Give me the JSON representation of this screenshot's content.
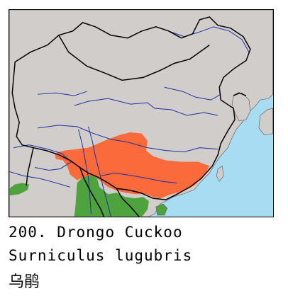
{
  "caption": {
    "number": "200.",
    "common_name": "Drongo Cuckoo",
    "scientific_name": "Surniculus lugubris",
    "chinese_name": "乌鹃"
  },
  "map": {
    "colors": {
      "sea": "#a8dcf3",
      "land": "#d1cdcb",
      "breeding_range": "#fa6a3a",
      "resident_range": "#4ea33f",
      "rivers": "#1f2ea0",
      "borders": "#000000"
    }
  }
}
